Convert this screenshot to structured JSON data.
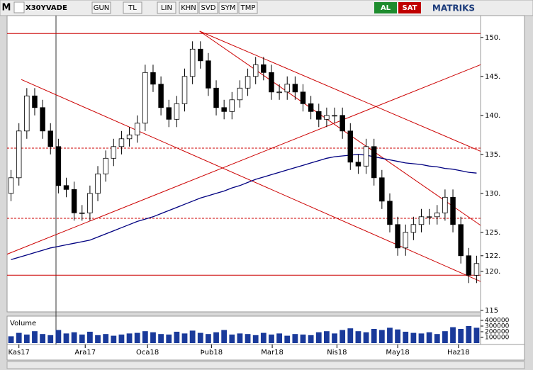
{
  "toolbar": {
    "logo": "M",
    "symbol": "X30YVADE",
    "buttons": [
      "GUN",
      "TL",
      "LIN",
      "KHN",
      "SVD",
      "SYM",
      "TMP"
    ],
    "buy": "AL",
    "sell": "SAT",
    "brand": "MATRIKS"
  },
  "chart_data": {
    "type": "candlestick",
    "xlim": [
      0,
      60
    ],
    "xticks": [
      {
        "value": 1.5,
        "label": "Kas17"
      },
      {
        "value": 9.9,
        "label": "Ara17"
      },
      {
        "value": 17.8,
        "label": "Oca18"
      },
      {
        "value": 25.9,
        "label": "Þub18"
      },
      {
        "value": 33.6,
        "label": "Mar18"
      },
      {
        "value": 41.8,
        "label": "Nis18"
      },
      {
        "value": 49.5,
        "label": "May18"
      },
      {
        "value": 57.2,
        "label": "Haz18"
      }
    ],
    "ylim": [
      114.8,
      152.8
    ],
    "yticks": [
      115,
      {
        "value": 120,
        "label": "120."
      },
      {
        "value": 122,
        "label": "122."
      },
      {
        "value": 125,
        "label": "125."
      },
      {
        "value": 130,
        "label": "130."
      },
      {
        "value": 135,
        "label": "135."
      },
      {
        "value": 140,
        "label": "140."
      },
      {
        "value": 145,
        "label": "145."
      },
      {
        "value": 150,
        "label": "150."
      }
    ],
    "open": [
      130,
      132,
      138,
      142.5,
      141,
      138,
      136,
      131,
      130.5,
      127.5,
      127.5,
      130,
      132.5,
      134.5,
      136,
      137,
      137.5,
      139,
      145.5,
      144,
      141,
      139.5,
      141.5,
      145,
      148.5,
      147,
      143.5,
      141,
      140.5,
      142,
      143.5,
      145,
      146.5,
      145.5,
      143,
      143,
      144,
      143,
      141.5,
      140.5,
      139.5,
      140,
      140,
      138,
      134,
      133.5,
      136,
      132,
      129,
      126,
      123,
      125,
      126,
      127,
      127,
      127.5,
      129.5,
      126,
      122,
      119.5
    ],
    "high": [
      133,
      139,
      143.5,
      143.5,
      142,
      139,
      137,
      132,
      131.5,
      128.5,
      131,
      133.5,
      135.5,
      137,
      138,
      138.5,
      140,
      146.5,
      146.5,
      145,
      142,
      142.5,
      146,
      149.5,
      149.5,
      148,
      144.5,
      142,
      143,
      144.5,
      146,
      147.5,
      147.5,
      146.5,
      144,
      145,
      145,
      144,
      142.5,
      141.5,
      141,
      141,
      141,
      139,
      135,
      137,
      137,
      133,
      130,
      127,
      126,
      127,
      128,
      128,
      128.5,
      130.5,
      130.5,
      127,
      123,
      122
    ],
    "low": [
      129,
      131,
      137,
      140,
      137,
      135,
      130,
      129.5,
      126.5,
      126.5,
      126.5,
      129,
      131.5,
      133.5,
      135,
      136,
      136.5,
      138,
      143,
      140,
      138.5,
      138.5,
      140.5,
      144,
      146,
      142.5,
      140,
      139.5,
      139.5,
      141,
      142.5,
      144,
      144.5,
      142,
      142,
      142,
      142,
      140.5,
      139.5,
      138.5,
      138.5,
      139,
      137,
      133,
      132.5,
      132.5,
      131,
      128,
      125,
      122,
      122,
      124,
      125,
      126,
      126,
      126.5,
      125,
      121,
      118.5,
      118.5
    ],
    "close": [
      132,
      138,
      142.5,
      141,
      138,
      136,
      131,
      130.5,
      127.5,
      127.5,
      130,
      132.5,
      134.5,
      136,
      137,
      137.5,
      139,
      145.5,
      144,
      141,
      139.5,
      141.5,
      145,
      148.5,
      147,
      143.5,
      141,
      140.5,
      142,
      143.5,
      145,
      146.5,
      145.5,
      143,
      143,
      144,
      143,
      141.5,
      140.5,
      139.5,
      140,
      140,
      138,
      134,
      133.5,
      136,
      132,
      129,
      126,
      123,
      125,
      126,
      127,
      127,
      127.5,
      129.5,
      126,
      122,
      119.5,
      121
    ],
    "moving_average": {
      "color": "#000080",
      "values": [
        121.5,
        121.8,
        122.1,
        122.4,
        122.7,
        123,
        123.2,
        123.4,
        123.6,
        123.8,
        124,
        124.4,
        124.8,
        125.2,
        125.6,
        126,
        126.4,
        126.7,
        127,
        127.4,
        127.8,
        128.2,
        128.6,
        129,
        129.4,
        129.7,
        130,
        130.3,
        130.7,
        131,
        131.4,
        131.8,
        132.1,
        132.4,
        132.7,
        133,
        133.3,
        133.6,
        133.9,
        134.2,
        134.5,
        134.7,
        134.8,
        134.9,
        135,
        134.9,
        134.7,
        134.5,
        134.3,
        134.1,
        133.9,
        133.8,
        133.7,
        133.5,
        133.4,
        133.2,
        133.1,
        132.9,
        132.7,
        132.6
      ]
    },
    "trend_color": "#cc0000",
    "hlines": [
      {
        "value": 150.5,
        "dashed": false
      },
      {
        "value": 119.5,
        "dashed": false
      },
      {
        "value": 135.8,
        "dashed": true
      },
      {
        "value": 126.8,
        "dashed": true
      }
    ],
    "trendlines": [
      {
        "x": [
          24.4,
          60
        ],
        "y": [
          150.8,
          135.4
        ]
      },
      {
        "x": [
          24.4,
          60
        ],
        "y": [
          150.8,
          125.9
        ]
      },
      {
        "x": [
          1.8,
          60
        ],
        "y": [
          144.6,
          118.7
        ]
      },
      {
        "x": [
          0,
          60
        ],
        "y": [
          122.2,
          146.5
        ]
      }
    ],
    "volume": {
      "label": "Volume",
      "color": "#1a3a9a",
      "ylim": [
        0,
        450000
      ],
      "yticks": [
        100000,
        200000,
        300000,
        400000
      ],
      "values": [
        120000,
        180000,
        150000,
        210000,
        160000,
        140000,
        230000,
        170000,
        190000,
        150000,
        200000,
        140000,
        160000,
        130000,
        150000,
        170000,
        180000,
        210000,
        190000,
        160000,
        150000,
        200000,
        170000,
        220000,
        180000,
        160000,
        190000,
        230000,
        150000,
        170000,
        160000,
        140000,
        180000,
        150000,
        170000,
        130000,
        160000,
        150000,
        140000,
        190000,
        210000,
        170000,
        230000,
        260000,
        210000,
        190000,
        250000,
        230000,
        270000,
        240000,
        200000,
        180000,
        170000,
        190000,
        160000,
        210000,
        280000,
        250000,
        300000,
        270000
      ]
    }
  }
}
